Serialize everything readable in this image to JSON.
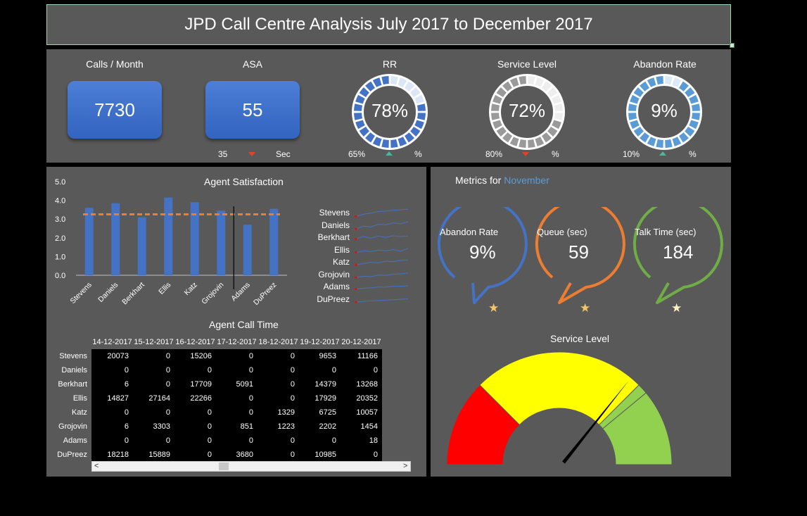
{
  "title": "JPD Call Centre Analysis July 2017 to December 2017",
  "kpis": {
    "calls": {
      "label": "Calls / Month",
      "value": "7730"
    },
    "asa": {
      "label": "ASA",
      "value": "55",
      "target": "35",
      "unit": "Sec",
      "trend": "down"
    },
    "rr": {
      "label": "RR",
      "value": "78%",
      "target": "65%",
      "unit": "%",
      "trend": "up",
      "fraction": 0.78
    },
    "service_level": {
      "label": "Service Level",
      "value": "72%",
      "target": "80%",
      "unit": "%",
      "trend": "down",
      "fraction": 0.72
    },
    "abandon_rate": {
      "label": "Abandon Rate",
      "value": "9%",
      "target": "10%",
      "unit": "%",
      "trend": "up",
      "fraction": 0.09
    }
  },
  "colors": {
    "panel": "#595959",
    "bar": "#4472c4",
    "target_line": "#ed7d31",
    "blue": "#4472c4",
    "orange": "#ed7d31",
    "green": "#70ad47",
    "gauge_red": "#ff0000",
    "gauge_yellow": "#ffff00",
    "gauge_green": "#92d050"
  },
  "chart_data": [
    {
      "type": "bar",
      "title": "Agent Satisfaction",
      "categories": [
        "Stevens",
        "Daniels",
        "Berkhart",
        "Ellis",
        "Katz",
        "Grojovin",
        "Adams",
        "DuPreez"
      ],
      "values": [
        3.6,
        3.85,
        3.1,
        4.15,
        3.9,
        3.45,
        2.7,
        3.55
      ],
      "target": 3.25,
      "ylim": [
        0,
        5
      ],
      "yticks": [
        "5.0",
        "4.0",
        "3.0",
        "2.0",
        "1.0",
        "0.0"
      ]
    }
  ],
  "sparklines": {
    "names": [
      "Stevens",
      "Daniels",
      "Berkhart",
      "Ellis",
      "Katz",
      "Grojovin",
      "Adams",
      "DuPreez"
    ],
    "series": [
      [
        1,
        2,
        2.6,
        3.4,
        3.6,
        4,
        4.3,
        4.6
      ],
      [
        1,
        2.4,
        2,
        3.4,
        3.1,
        4,
        3.6,
        4.6
      ],
      [
        2,
        3.2,
        2.4,
        3.4,
        2.8,
        3.6,
        3.2,
        3.4
      ],
      [
        1.6,
        2.4,
        2,
        2.8,
        2.4,
        3,
        2.2,
        3.6
      ],
      [
        1.4,
        2,
        2.6,
        2.4,
        3.2,
        3,
        3.6,
        3.8
      ],
      [
        1.4,
        2,
        1.8,
        2.6,
        2.4,
        3,
        3.2,
        3.6
      ],
      [
        1.6,
        2,
        2.2,
        2.6,
        2.6,
        3,
        3,
        3.2
      ],
      [
        1.4,
        1.8,
        2,
        2.2,
        2.4,
        2.6,
        2.8,
        3
      ]
    ]
  },
  "call_time": {
    "title": "Agent Call Time",
    "dates": [
      "14-12-2017",
      "15-12-2017",
      "16-12-2017",
      "17-12-2017",
      "18-12-2017",
      "19-12-2017",
      "20-12-2017"
    ],
    "rows": [
      {
        "name": "Stevens",
        "values": [
          "20073",
          "0",
          "15206",
          "0",
          "0",
          "9653",
          "11166"
        ]
      },
      {
        "name": "Daniels",
        "values": [
          "0",
          "0",
          "0",
          "0",
          "0",
          "0",
          "0"
        ]
      },
      {
        "name": "Berkhart",
        "values": [
          "6",
          "0",
          "17709",
          "5091",
          "0",
          "14379",
          "13268"
        ]
      },
      {
        "name": "Ellis",
        "values": [
          "14827",
          "27164",
          "22266",
          "0",
          "0",
          "17929",
          "20352"
        ]
      },
      {
        "name": "Katz",
        "values": [
          "0",
          "0",
          "0",
          "0",
          "1329",
          "6725",
          "10057"
        ]
      },
      {
        "name": "Grojovin",
        "values": [
          "6",
          "3303",
          "0",
          "851",
          "1223",
          "2202",
          "1454"
        ]
      },
      {
        "name": "Adams",
        "values": [
          "0",
          "0",
          "0",
          "0",
          "0",
          "0",
          "18"
        ]
      },
      {
        "name": "DuPreez",
        "values": [
          "18218",
          "15889",
          "0",
          "3680",
          "0",
          "10985",
          "0"
        ]
      }
    ],
    "scroll_left": "<",
    "scroll_right": ">"
  },
  "metrics": {
    "prefix": "Metrics for",
    "month": "November",
    "abandon": {
      "label": "Abandon Rate",
      "value": "9%"
    },
    "queue": {
      "label": "Queue  (sec)",
      "value": "59"
    },
    "talk": {
      "label": "Talk Time (sec)",
      "value": "184"
    },
    "star": "★"
  },
  "gauge": {
    "title": "Service Level",
    "bands": [
      0.25,
      0.5,
      0.03,
      0.22
    ],
    "value_fraction": 0.72
  }
}
